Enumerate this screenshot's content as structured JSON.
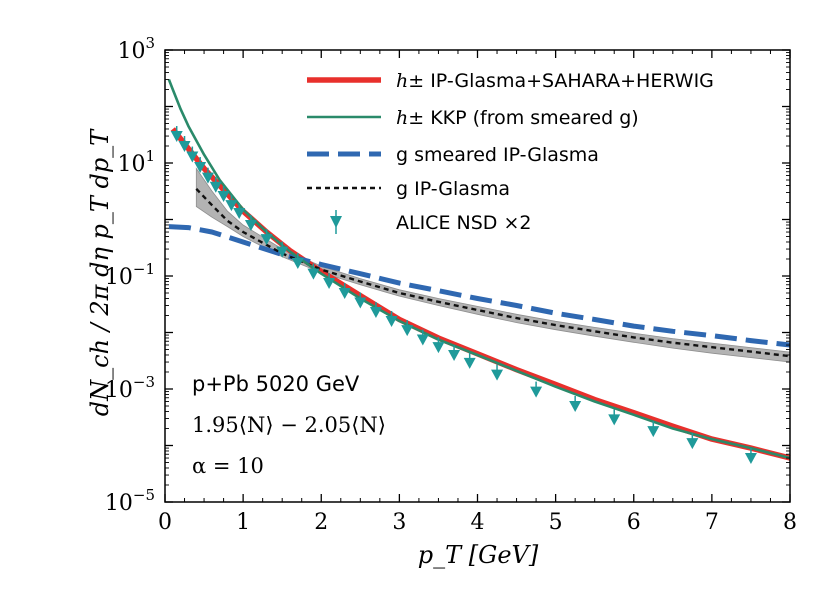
{
  "chart_data": {
    "type": "line",
    "xlabel": "p_T [GeV]",
    "ylabel": "dN_ch / 2π dη p_T dp_T",
    "xlim": [
      0,
      8
    ],
    "ylim": [
      1e-05,
      1000
    ],
    "yscale": "log",
    "x_ticks": [
      "0",
      "1",
      "2",
      "3",
      "4",
      "5",
      "6",
      "7",
      "8"
    ],
    "y_ticks": [
      {
        "base": "10",
        "exp": "3",
        "value": 1000
      },
      {
        "base": "10",
        "exp": "1",
        "value": 10
      },
      {
        "base": "10",
        "exp": "−1",
        "value": 0.1
      },
      {
        "base": "10",
        "exp": "−3",
        "value": 0.001
      },
      {
        "base": "10",
        "exp": "−5",
        "value": 1e-05
      }
    ],
    "grid": false,
    "legend_position": "top-right",
    "annotations": {
      "line1": "p+Pb 5020 GeV",
      "line2": "1.95⟨N⟩ − 2.05⟨N⟩",
      "line3": "α = 10"
    },
    "series": [
      {
        "name": "h± IP-Glasma+SAHARA+HERWIG",
        "legend_prefix": "h±",
        "legend_suffix": "IP-Glasma+SAHARA+HERWIG",
        "color": "#e8302c",
        "style": "solid-thick",
        "x": [
          0.1,
          0.3,
          0.5,
          0.7,
          1.0,
          1.3,
          1.6,
          2.0,
          2.5,
          3.0,
          3.5,
          4.0,
          4.5,
          5.0,
          5.5,
          6.0,
          6.5,
          7.0,
          7.5,
          8.0
        ],
        "y": [
          40,
          18,
          8,
          4,
          1.4,
          0.6,
          0.28,
          0.12,
          0.045,
          0.017,
          0.008,
          0.0042,
          0.0022,
          0.0012,
          0.00065,
          0.00038,
          0.00022,
          0.00013,
          9e-05,
          6e-05
        ]
      },
      {
        "name": "h± KKP (from smeared g)",
        "legend_prefix": "h±",
        "legend_suffix": "KKP (from smeared g)",
        "color": "#2a8a6a",
        "style": "solid-thin",
        "x": [
          0.05,
          0.1,
          0.2,
          0.3,
          0.5,
          0.7,
          1.0,
          1.3,
          1.6,
          2.0,
          2.5,
          3.0,
          3.5,
          4.0,
          4.5,
          5.0,
          5.5,
          6.0,
          6.5,
          7.0,
          7.5,
          8.0
        ],
        "y": [
          300,
          200,
          90,
          45,
          14,
          5,
          1.5,
          0.6,
          0.27,
          0.11,
          0.04,
          0.016,
          0.0075,
          0.004,
          0.0021,
          0.0011,
          0.0006,
          0.00035,
          0.0002,
          0.00013,
          9e-05,
          6e-05
        ]
      },
      {
        "name": "g smeared IP-Glasma",
        "legend_prefix": "",
        "legend_suffix": "g smeared IP-Glasma",
        "color": "#2f68b1",
        "style": "dashed",
        "x": [
          0.05,
          0.3,
          0.6,
          1.0,
          1.5,
          2.0,
          2.5,
          3.0,
          3.5,
          4.0,
          4.5,
          5.0,
          5.5,
          6.0,
          6.5,
          7.0,
          7.5,
          8.0
        ],
        "y": [
          0.75,
          0.72,
          0.6,
          0.4,
          0.24,
          0.16,
          0.11,
          0.075,
          0.055,
          0.04,
          0.03,
          0.022,
          0.017,
          0.013,
          0.0105,
          0.0088,
          0.0072,
          0.006
        ]
      },
      {
        "name": "g IP-Glasma",
        "legend_prefix": "",
        "legend_suffix": "g IP-Glasma",
        "color": "#111111",
        "style": "dotted",
        "x": [
          0.4,
          0.6,
          0.8,
          1.0,
          1.5,
          2.0,
          2.5,
          3.0,
          3.5,
          4.0,
          4.5,
          5.0,
          5.5,
          6.0,
          6.5,
          7.0,
          7.5,
          8.0
        ],
        "y": [
          3.5,
          1.8,
          0.95,
          0.6,
          0.25,
          0.13,
          0.08,
          0.05,
          0.035,
          0.025,
          0.018,
          0.0135,
          0.0105,
          0.0082,
          0.0066,
          0.0055,
          0.0046,
          0.0038
        ],
        "band_low": [
          1.7,
          1.1,
          0.75,
          0.5,
          0.22,
          0.115,
          0.07,
          0.044,
          0.03,
          0.021,
          0.015,
          0.0112,
          0.0086,
          0.0067,
          0.0053,
          0.0043,
          0.0036,
          0.003
        ],
        "band_high": [
          8,
          3.2,
          1.4,
          0.8,
          0.3,
          0.15,
          0.09,
          0.057,
          0.04,
          0.029,
          0.021,
          0.0158,
          0.0123,
          0.0097,
          0.0078,
          0.0065,
          0.0054,
          0.0045
        ]
      },
      {
        "name": "ALICE NSD ×2",
        "legend_prefix": "",
        "legend_suffix": "ALICE NSD ×2",
        "color": "#1f9a9a",
        "style": "markers",
        "x": [
          0.15,
          0.25,
          0.35,
          0.45,
          0.55,
          0.65,
          0.75,
          0.85,
          0.95,
          1.1,
          1.3,
          1.5,
          1.7,
          1.9,
          2.1,
          2.3,
          2.5,
          2.7,
          2.9,
          3.1,
          3.3,
          3.5,
          3.7,
          3.9,
          4.25,
          4.75,
          5.25,
          5.75,
          6.25,
          6.75,
          7.5
        ],
        "y": [
          30,
          20,
          13,
          8.5,
          5.5,
          3.8,
          2.6,
          1.8,
          1.3,
          0.8,
          0.45,
          0.27,
          0.17,
          0.11,
          0.075,
          0.05,
          0.034,
          0.023,
          0.016,
          0.011,
          0.0075,
          0.0055,
          0.004,
          0.0029,
          0.0018,
          0.0009,
          0.0005,
          0.00029,
          0.00018,
          0.00011,
          6e-05
        ]
      }
    ]
  }
}
